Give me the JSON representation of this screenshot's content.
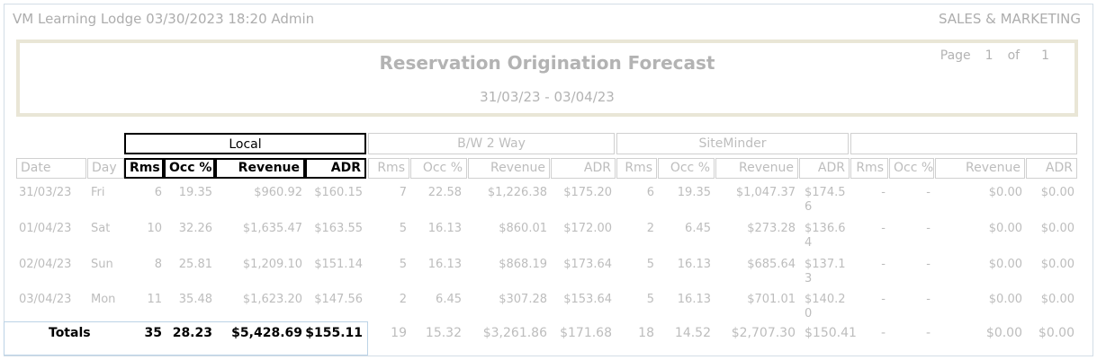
{
  "header": {
    "left": "VM Learning Lodge 03/30/2023 18:20  Admin",
    "right": "SALES & MARKETING"
  },
  "report": {
    "title": "Reservation Origination Forecast",
    "date_range": "31/03/23 - 03/04/23",
    "page_label": "Page",
    "page_num": "1",
    "of_label": "of",
    "page_total": "1"
  },
  "groups": [
    "Local",
    "B/W 2 Way",
    "SiteMinder",
    ""
  ],
  "columns": {
    "date": "Date",
    "day": "Day",
    "groups": [
      [
        "Rms",
        "Occ %",
        "Revenue",
        "ADR"
      ],
      [
        "Rms",
        "Occ %",
        "Revenue",
        "ADR"
      ],
      [
        "Rms",
        "Occ %",
        "Revenue",
        "ADR"
      ],
      [
        "Rms",
        "Occ %",
        "Revenue",
        "ADR"
      ]
    ]
  },
  "rows": [
    {
      "date": "31/03/23",
      "day": "Fri",
      "vals": [
        [
          "6",
          "19.35",
          "$960.92",
          "$160.15"
        ],
        [
          "7",
          "22.58",
          "$1,226.38",
          "$175.20"
        ],
        [
          "6",
          "19.35",
          "$1,047.37",
          "$174.56"
        ],
        [
          "-",
          "-",
          "$0.00",
          "$0.00"
        ]
      ]
    },
    {
      "date": "01/04/23",
      "day": "Sat",
      "vals": [
        [
          "10",
          "32.26",
          "$1,635.47",
          "$163.55"
        ],
        [
          "5",
          "16.13",
          "$860.01",
          "$172.00"
        ],
        [
          "2",
          "6.45",
          "$273.28",
          "$136.64"
        ],
        [
          "-",
          "-",
          "$0.00",
          "$0.00"
        ]
      ]
    },
    {
      "date": "02/04/23",
      "day": "Sun",
      "vals": [
        [
          "8",
          "25.81",
          "$1,209.10",
          "$151.14"
        ],
        [
          "5",
          "16.13",
          "$868.19",
          "$173.64"
        ],
        [
          "5",
          "16.13",
          "$685.64",
          "$137.13"
        ],
        [
          "-",
          "-",
          "$0.00",
          "$0.00"
        ]
      ]
    },
    {
      "date": "03/04/23",
      "day": "Mon",
      "vals": [
        [
          "11",
          "35.48",
          "$1,623.20",
          "$147.56"
        ],
        [
          "2",
          "6.45",
          "$307.28",
          "$153.64"
        ],
        [
          "5",
          "16.13",
          "$701.01",
          "$140.20"
        ],
        [
          "-",
          "-",
          "$0.00",
          "$0.00"
        ]
      ]
    }
  ],
  "totals": {
    "label": "Totals",
    "vals": [
      [
        "35",
        "28.23",
        "$5,428.69",
        "$155.11"
      ],
      [
        "19",
        "15.32",
        "$3,261.86",
        "$171.68"
      ],
      [
        "18",
        "14.52",
        "$2,707.30",
        "$150.41"
      ],
      [
        "-",
        "-",
        "$0.00",
        "$0.00"
      ]
    ]
  }
}
